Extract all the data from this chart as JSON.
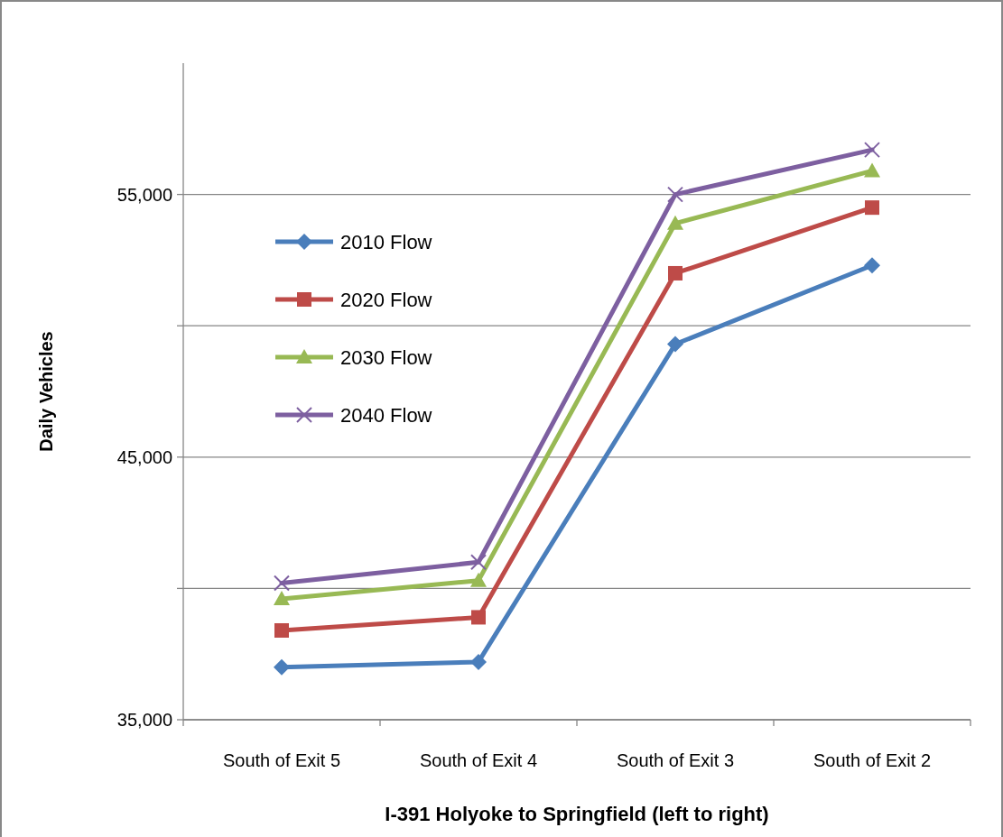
{
  "chart_data": {
    "type": "line",
    "xlabel": "I-391 Holyoke to Springfield  (left to right)",
    "ylabel": "Daily Vehicles",
    "categories": [
      "South of Exit 5",
      "South of Exit 4",
      "South of Exit 3",
      "South of Exit 2"
    ],
    "series": [
      {
        "name": "2010 Flow",
        "color": "#4a7ebb",
        "marker": "diamond",
        "values": [
          37000,
          37200,
          49300,
          52300
        ]
      },
      {
        "name": "2020 Flow",
        "color": "#be4b48",
        "marker": "square",
        "values": [
          38400,
          38900,
          52000,
          54500
        ]
      },
      {
        "name": "2030 Flow",
        "color": "#98b954",
        "marker": "triangle",
        "values": [
          39600,
          40300,
          53900,
          55900
        ]
      },
      {
        "name": "2040 Flow",
        "color": "#7d5fa0",
        "marker": "cross",
        "values": [
          40200,
          41000,
          55000,
          56700
        ]
      }
    ],
    "ylim": [
      35000,
      60000
    ],
    "yticks": [
      {
        "value": 35000,
        "label": "35,000"
      },
      {
        "value": 40000,
        "label": null
      },
      {
        "value": 45000,
        "label": "45,000"
      },
      {
        "value": 50000,
        "label": null
      },
      {
        "value": 55000,
        "label": "55,000"
      }
    ],
    "grid": "y",
    "legend": "top left"
  }
}
